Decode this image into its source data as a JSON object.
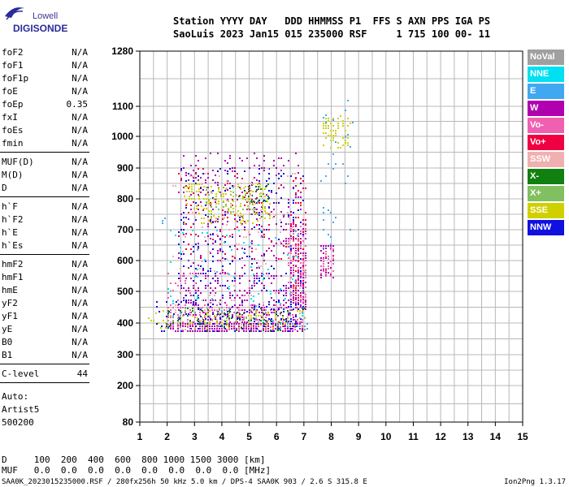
{
  "logo": {
    "line1": "Lowell",
    "line2": "DIGISONDE"
  },
  "header": {
    "line1": "Station YYYY DAY   DDD HHMMSS P1  FFS S AXN PPS IGA PS",
    "line2": "SaoLuis 2023 Jan15 015 235000 RSF     1 715 100 00- 11"
  },
  "params_groups": [
    [
      {
        "name": "foF2",
        "value": "N/A"
      },
      {
        "name": "foF1",
        "value": "N/A"
      },
      {
        "name": "foF1p",
        "value": "N/A"
      },
      {
        "name": "foE",
        "value": "N/A"
      },
      {
        "name": "foEp",
        "value": "0.35"
      },
      {
        "name": "fxI",
        "value": "N/A"
      },
      {
        "name": "foEs",
        "value": "N/A"
      },
      {
        "name": "fmin",
        "value": "N/A"
      }
    ],
    [
      {
        "name": "MUF(D)",
        "value": "N/A"
      },
      {
        "name": "M(D)",
        "value": "N/A"
      },
      {
        "name": "D",
        "value": "N/A"
      }
    ],
    [
      {
        "name": "h`F",
        "value": "N/A"
      },
      {
        "name": "h`F2",
        "value": "N/A"
      },
      {
        "name": "h`E",
        "value": "N/A"
      },
      {
        "name": "h`Es",
        "value": "N/A"
      }
    ],
    [
      {
        "name": "hmF2",
        "value": "N/A"
      },
      {
        "name": "hmF1",
        "value": "N/A"
      },
      {
        "name": "hmE",
        "value": "N/A"
      },
      {
        "name": "yF2",
        "value": "N/A"
      },
      {
        "name": "yF1",
        "value": "N/A"
      },
      {
        "name": "yE",
        "value": "N/A"
      },
      {
        "name": "B0",
        "value": "N/A"
      },
      {
        "name": "B1",
        "value": "N/A"
      }
    ],
    [
      {
        "name": "C-level",
        "value": "44"
      }
    ]
  ],
  "auto": {
    "line1": "Auto:",
    "line2": "Artist5",
    "line3": "500200"
  },
  "freq_table": {
    "line1": "D     100  200  400  600  800 1000 1500 3000 [km]",
    "line2": "MUF   0.0  0.0  0.0  0.0  0.0  0.0  0.0  0.0 [MHz]"
  },
  "footer": {
    "left": "SAA0K_2023015235000.RSF / 280fx256h 50 kHz 5.0 km / DPS-4 SAA0K 903 / 2.6 S 315.8 E",
    "right": "Ion2Png 1.3.17"
  },
  "legend": [
    {
      "label": "NoVal",
      "color": "#a0a0a0"
    },
    {
      "label": "NNE",
      "color": "#00e0f0"
    },
    {
      "label": "E",
      "color": "#40a8f0"
    },
    {
      "label": "W",
      "color": "#b000b0"
    },
    {
      "label": "Vo-",
      "color": "#f060b0"
    },
    {
      "label": "Vo+",
      "color": "#f00040"
    },
    {
      "label": "SSW",
      "color": "#f0b0b0"
    },
    {
      "label": "X-",
      "color": "#108010"
    },
    {
      "label": "X+",
      "color": "#80c060"
    },
    {
      "label": "SSE",
      "color": "#d0d000"
    },
    {
      "label": "NNW",
      "color": "#1010e0"
    }
  ],
  "chart_data": {
    "type": "scatter",
    "xlim": [
      1,
      15
    ],
    "x_ticks": [
      1,
      2,
      3,
      4,
      5,
      6,
      7,
      8,
      9,
      10,
      11,
      12,
      13,
      14,
      15
    ],
    "y_ticks": [
      80,
      200,
      300,
      400,
      500,
      600,
      700,
      800,
      900,
      1000,
      1100,
      1280
    ],
    "ylim": [
      80,
      1280
    ],
    "y_scale": "ionogram-nonlinear",
    "grid": true,
    "legend_position": "right",
    "series": [
      {
        "name": "W",
        "color": "#b000b0",
        "clusters": [
          {
            "x": [
              2.1,
              7.0
            ],
            "y": [
              375,
              400
            ],
            "density": 0.7
          },
          {
            "x": [
              2.4,
              7.0
            ],
            "y": [
              400,
              560
            ],
            "density": 0.22
          },
          {
            "x": [
              2.4,
              6.9
            ],
            "y": [
              560,
              950
            ],
            "density": 0.1
          },
          {
            "x": [
              6.5,
              7.1
            ],
            "y": [
              440,
              720
            ],
            "density": 0.3
          },
          {
            "x": [
              7.6,
              8.1
            ],
            "y": [
              540,
              650
            ],
            "density": 0.35
          }
        ]
      },
      {
        "name": "Vo-",
        "color": "#f060b0",
        "clusters": [
          {
            "x": [
              2.0,
              7.0
            ],
            "y": [
              380,
              460
            ],
            "density": 0.25
          },
          {
            "x": [
              6.4,
              7.1
            ],
            "y": [
              450,
              720
            ],
            "density": 0.3
          },
          {
            "x": [
              7.6,
              8.1
            ],
            "y": [
              550,
              640
            ],
            "density": 0.45
          },
          {
            "x": [
              2.0,
              2.9
            ],
            "y": [
              390,
              560
            ],
            "density": 0.1
          }
        ]
      },
      {
        "name": "Vo+",
        "color": "#f00040",
        "clusters": [
          {
            "x": [
              6.6,
              7.1
            ],
            "y": [
              470,
              900
            ],
            "density": 0.18
          },
          {
            "x": [
              2.3,
              6.5
            ],
            "y": [
              600,
              900
            ],
            "density": 0.04
          }
        ]
      },
      {
        "name": "NNW",
        "color": "#1010e0",
        "clusters": [
          {
            "x": [
              1.6,
              7.0
            ],
            "y": [
              375,
              470
            ],
            "density": 0.18
          },
          {
            "x": [
              2.4,
              7.0
            ],
            "y": [
              470,
              900
            ],
            "density": 0.06
          }
        ]
      },
      {
        "name": "X-",
        "color": "#108010",
        "clusters": [
          {
            "x": [
              2.0,
              7.0
            ],
            "y": [
              380,
              450
            ],
            "density": 0.12
          },
          {
            "x": [
              4.6,
              5.7
            ],
            "y": [
              790,
              850
            ],
            "density": 0.25
          }
        ]
      },
      {
        "name": "SSE",
        "color": "#d0d000",
        "clusters": [
          {
            "x": [
              1.3,
              7.0
            ],
            "y": [
              385,
              440
            ],
            "density": 0.15
          },
          {
            "x": [
              2.6,
              5.8
            ],
            "y": [
              720,
              850
            ],
            "density": 0.25
          },
          {
            "x": [
              7.7,
              8.7
            ],
            "y": [
              960,
              1070
            ],
            "density": 0.3
          }
        ]
      },
      {
        "name": "X+",
        "color": "#80c060",
        "clusters": [
          {
            "x": [
              2.0,
              7.0
            ],
            "y": [
              390,
              450
            ],
            "density": 0.08
          },
          {
            "x": [
              3.4,
              5.6
            ],
            "y": [
              740,
              840
            ],
            "density": 0.1
          }
        ]
      },
      {
        "name": "E",
        "color": "#40a8f0",
        "clusters": [
          {
            "x": [
              6.1,
              7.1
            ],
            "y": [
              380,
              400
            ],
            "density": 0.2
          },
          {
            "x": [
              7.6,
              8.9
            ],
            "y": [
              600,
              1120
            ],
            "density": 0.04
          },
          {
            "x": [
              1.8,
              2.2
            ],
            "y": [
              720,
              740
            ],
            "density": 0.2
          }
        ]
      },
      {
        "name": "NNE",
        "color": "#00e0f0",
        "clusters": [
          {
            "x": [
              2.0,
              7.0
            ],
            "y": [
              380,
              700
            ],
            "density": 0.03
          }
        ]
      },
      {
        "name": "SSW",
        "color": "#f0b0b0",
        "clusters": [
          {
            "x": [
              2.0,
              7.0
            ],
            "y": [
              380,
              900
            ],
            "density": 0.03
          }
        ]
      }
    ]
  }
}
